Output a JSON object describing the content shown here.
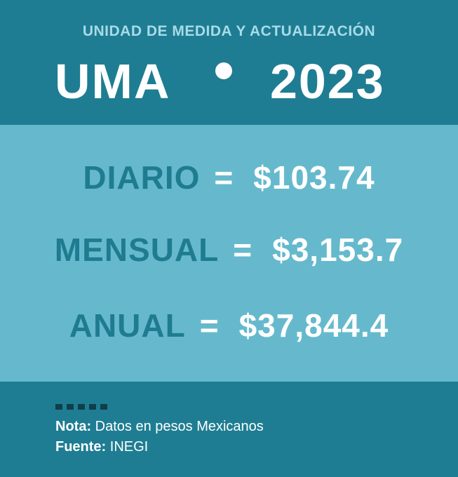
{
  "header": {
    "subtitle": "UNIDAD DE MEDIDA Y ACTUALIZACIÓN",
    "title_left": "UMA",
    "title_right": "2023"
  },
  "rows": [
    {
      "label": "DIARIO",
      "equals": "=",
      "amount": "$103.74"
    },
    {
      "label": "MENSUAL",
      "equals": "=",
      "amount": "$3,153.7"
    },
    {
      "label": "ANUAL",
      "equals": "=",
      "amount": "$37,844.4"
    }
  ],
  "footer": {
    "note_label": "Nota:",
    "note_text": "Datos en pesos Mexicanos",
    "source_label": "Fuente:",
    "source_text": "INEGI"
  },
  "colors": {
    "dark_teal": "#1e7d92",
    "light_teal": "#66b9cd",
    "label_teal": "#1f7c90",
    "subtitle": "#a8dbe8",
    "white": "#ffffff"
  }
}
